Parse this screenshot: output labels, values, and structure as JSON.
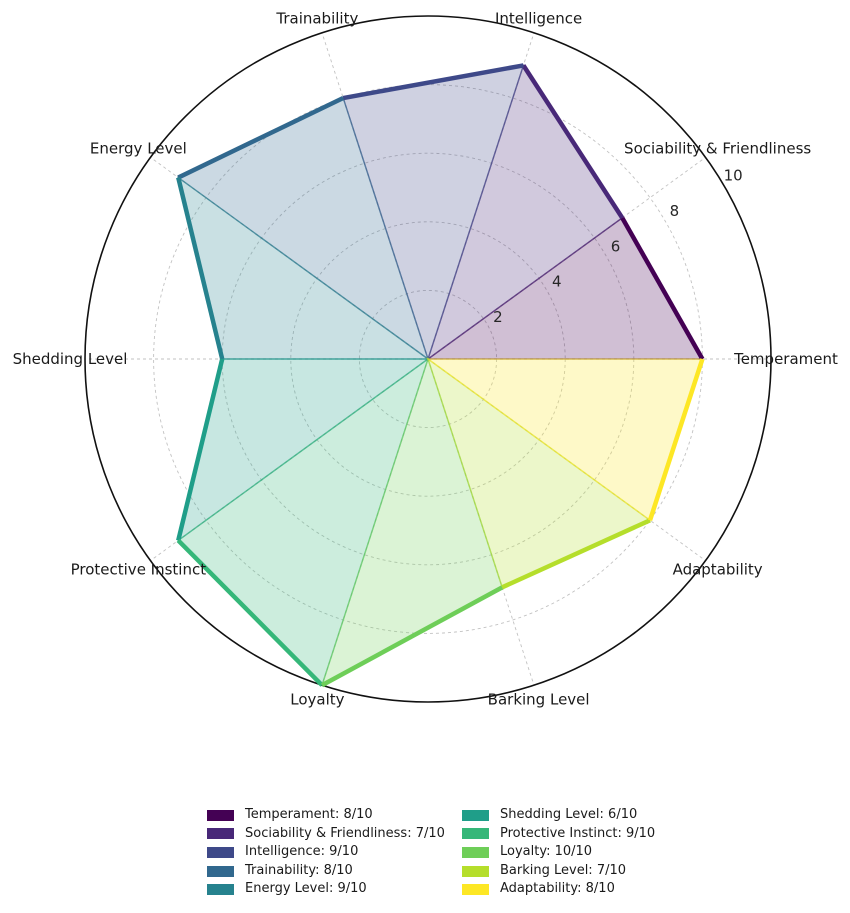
{
  "figure": {
    "kind": "radar-chart-figure",
    "background": "#ffffff"
  },
  "chart_data": {
    "type": "radar",
    "title": "",
    "categories": [
      "Temperament",
      "Sociability & Friendliness",
      "Intelligence",
      "Trainability",
      "Energy Level",
      "Shedding Level",
      "Protective Instinct",
      "Loyalty",
      "Barking Level",
      "Adaptability"
    ],
    "values": [
      8,
      7,
      9,
      8,
      9,
      6,
      9,
      10,
      7,
      8
    ],
    "scale_max": 10,
    "radial_ticks": [
      2,
      4,
      6,
      8,
      10
    ],
    "start_angle_deg": 0,
    "direction": "counterclockwise",
    "grid": "dashed circles and spokes",
    "segment_colors": [
      "#440154",
      "#482878",
      "#3e4989",
      "#31688e",
      "#26828e",
      "#1f9e89",
      "#35b779",
      "#6ece58",
      "#b5de2b",
      "#fde725"
    ],
    "legend": {
      "position": "bottom",
      "columns": 2,
      "labels": [
        "Temperament: 8/10",
        "Sociability & Friendliness: 7/10",
        "Intelligence: 9/10",
        "Trainability: 8/10",
        "Energy Level: 9/10",
        "Shedding Level: 6/10",
        "Protective Instinct: 9/10",
        "Loyalty: 10/10",
        "Barking Level: 7/10",
        "Adaptability: 8/10"
      ]
    }
  },
  "style": {
    "spine_color": "#111111",
    "grid_color": "#c2c2c2",
    "axis_label_color": "#1a1a1a",
    "tick_label_color": "#262626",
    "fill_alpha": 0.25,
    "edge_alpha": 0.5,
    "segment_line_width": 4.5
  }
}
